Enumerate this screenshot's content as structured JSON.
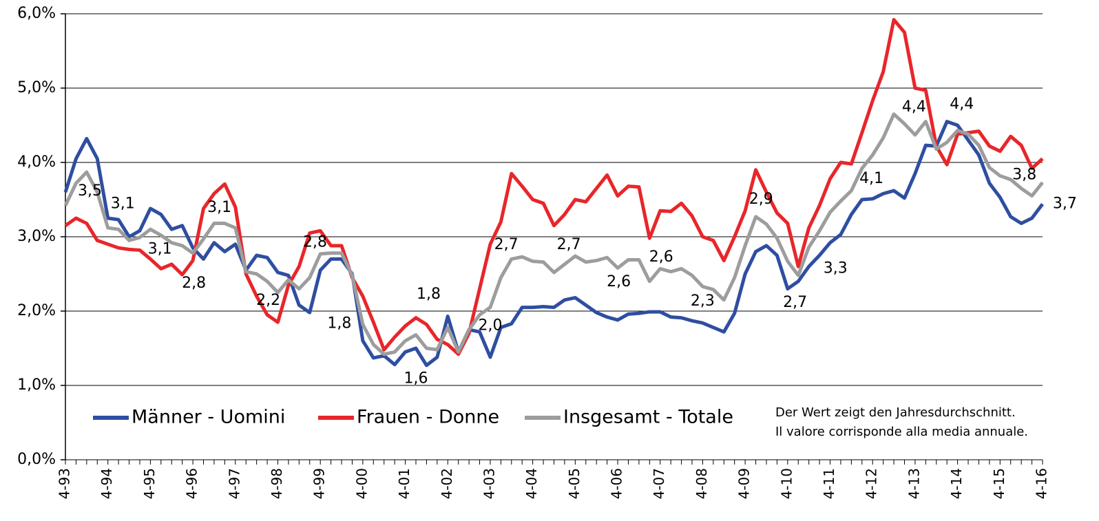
{
  "chart_data": {
    "type": "line",
    "categories": [
      "4-93",
      null,
      null,
      null,
      "4-94",
      null,
      null,
      null,
      "4-95",
      null,
      null,
      null,
      "4-96",
      null,
      null,
      null,
      "4-97",
      null,
      null,
      null,
      "4-98",
      null,
      null,
      null,
      "4-99",
      null,
      null,
      null,
      "4-00",
      null,
      null,
      null,
      "4-01",
      null,
      null,
      null,
      "4-02",
      null,
      null,
      null,
      "4-03",
      null,
      null,
      null,
      "4-04",
      null,
      null,
      null,
      "4-05",
      null,
      null,
      null,
      "4-06",
      null,
      null,
      null,
      "4-07",
      null,
      null,
      null,
      "4-08",
      null,
      null,
      null,
      "4-09",
      null,
      null,
      null,
      "4-10",
      null,
      null,
      null,
      "4-11",
      null,
      null,
      null,
      "4-12",
      null,
      null,
      null,
      "4-13",
      null,
      null,
      null,
      "4-14",
      null,
      null,
      null,
      "4-15",
      null,
      null,
      null,
      "4-16"
    ],
    "series": [
      {
        "name": "Männer - Uomini",
        "color": "#2f4ea1",
        "values": [
          3.6,
          4.05,
          4.32,
          4.05,
          3.25,
          3.23,
          3.0,
          3.08,
          3.38,
          3.3,
          3.1,
          3.15,
          2.85,
          2.7,
          2.92,
          2.8,
          2.9,
          2.55,
          2.75,
          2.72,
          2.52,
          2.48,
          2.08,
          1.98,
          2.55,
          2.7,
          2.7,
          2.5,
          1.6,
          1.37,
          1.4,
          1.28,
          1.45,
          1.5,
          1.27,
          1.38,
          1.93,
          1.45,
          1.75,
          1.72,
          1.38,
          1.78,
          1.83,
          2.05,
          2.05,
          2.06,
          2.05,
          2.15,
          2.18,
          2.08,
          1.98,
          1.92,
          1.88,
          1.96,
          1.97,
          1.99,
          1.99,
          1.92,
          1.91,
          1.87,
          1.84,
          1.78,
          1.72,
          1.97,
          2.5,
          2.8,
          2.88,
          2.75,
          2.3,
          2.4,
          2.6,
          2.75,
          2.92,
          3.03,
          3.3,
          3.5,
          3.51,
          3.58,
          3.62,
          3.52,
          3.85,
          4.23,
          4.22,
          4.55,
          4.5,
          4.3,
          4.1,
          3.72,
          3.53,
          3.27,
          3.18,
          3.25,
          3.44
        ]
      },
      {
        "name": "Frauen - Donne",
        "color": "#e8262a",
        "values": [
          3.15,
          3.25,
          3.18,
          2.95,
          2.9,
          2.85,
          2.83,
          2.82,
          2.7,
          2.57,
          2.63,
          2.49,
          2.68,
          3.38,
          3.58,
          3.71,
          3.4,
          2.5,
          2.2,
          1.95,
          1.85,
          2.35,
          2.6,
          3.05,
          3.08,
          2.88,
          2.88,
          2.45,
          2.2,
          1.85,
          1.48,
          1.65,
          1.8,
          1.91,
          1.82,
          1.62,
          1.55,
          1.42,
          1.7,
          2.3,
          2.9,
          3.2,
          3.85,
          3.68,
          3.5,
          3.45,
          3.15,
          3.3,
          3.5,
          3.47,
          3.65,
          3.83,
          3.55,
          3.68,
          3.67,
          2.98,
          3.35,
          3.34,
          3.45,
          3.28,
          3.0,
          2.95,
          2.68,
          3.0,
          3.35,
          3.9,
          3.6,
          3.32,
          3.18,
          2.6,
          3.12,
          3.42,
          3.78,
          4.0,
          3.98,
          4.4,
          4.83,
          5.22,
          5.92,
          5.75,
          5.0,
          4.97,
          4.22,
          3.97,
          4.38,
          4.4,
          4.42,
          4.22,
          4.15,
          4.35,
          4.23,
          3.92,
          4.05
        ]
      },
      {
        "name": "Insgesamt - Totale",
        "color": "#9d9d9d",
        "values": [
          3.42,
          3.72,
          3.87,
          3.6,
          3.12,
          3.1,
          2.95,
          2.99,
          3.1,
          3.02,
          2.92,
          2.88,
          2.78,
          2.97,
          3.18,
          3.18,
          3.12,
          2.53,
          2.5,
          2.4,
          2.25,
          2.42,
          2.3,
          2.45,
          2.77,
          2.78,
          2.78,
          2.48,
          1.82,
          1.55,
          1.42,
          1.45,
          1.6,
          1.68,
          1.5,
          1.48,
          1.78,
          1.45,
          1.75,
          1.95,
          2.05,
          2.45,
          2.7,
          2.73,
          2.67,
          2.66,
          2.52,
          2.63,
          2.74,
          2.66,
          2.68,
          2.72,
          2.58,
          2.69,
          2.69,
          2.4,
          2.57,
          2.53,
          2.57,
          2.48,
          2.33,
          2.29,
          2.15,
          2.45,
          2.88,
          3.27,
          3.17,
          2.98,
          2.67,
          2.48,
          2.86,
          3.08,
          3.33,
          3.48,
          3.62,
          3.92,
          4.1,
          4.33,
          4.65,
          4.52,
          4.37,
          4.55,
          4.18,
          4.27,
          4.43,
          4.38,
          4.23,
          3.93,
          3.82,
          3.77,
          3.65,
          3.55,
          3.73
        ]
      }
    ],
    "ylim": [
      0,
      6
    ],
    "yticks": [
      {
        "value": 0,
        "label": "0,0%"
      },
      {
        "value": 1,
        "label": "1,0%"
      },
      {
        "value": 2,
        "label": "2,0%"
      },
      {
        "value": 3,
        "label": "3,0%"
      },
      {
        "value": 4,
        "label": "4,0%"
      },
      {
        "value": 5,
        "label": "5,0%"
      },
      {
        "value": 6,
        "label": "6,0%"
      }
    ],
    "grid": true,
    "legend": "bottom-left",
    "note": [
      "Der Wert zeigt den Jahresdurchschnitt.",
      "Il valore corrisponde alla media annuale."
    ],
    "annotations": [
      {
        "text": "3,5",
        "x": 2.3,
        "y": 3.61
      },
      {
        "text": "3,1",
        "x": 5.4,
        "y": 3.44
      },
      {
        "text": "3,1",
        "x": 8.9,
        "y": 2.83
      },
      {
        "text": "2,8",
        "x": 12.1,
        "y": 2.37
      },
      {
        "text": "3,1",
        "x": 14.5,
        "y": 3.39
      },
      {
        "text": "2,2",
        "x": 19.1,
        "y": 2.14
      },
      {
        "text": "2,8",
        "x": 23.5,
        "y": 2.92
      },
      {
        "text": "1,8",
        "x": 25.8,
        "y": 1.83
      },
      {
        "text": "1,8",
        "x": 34.2,
        "y": 2.22
      },
      {
        "text": "1,6",
        "x": 33.0,
        "y": 1.09
      },
      {
        "text": "2,0",
        "x": 40.0,
        "y": 1.8
      },
      {
        "text": "2,7",
        "x": 41.5,
        "y": 2.89
      },
      {
        "text": "2,7",
        "x": 47.4,
        "y": 2.89
      },
      {
        "text": "2,6",
        "x": 52.1,
        "y": 2.39
      },
      {
        "text": "2,6",
        "x": 56.1,
        "y": 2.72
      },
      {
        "text": "2,3",
        "x": 60.0,
        "y": 2.13
      },
      {
        "text": "2,9",
        "x": 65.5,
        "y": 3.5
      },
      {
        "text": "2,7",
        "x": 68.7,
        "y": 2.11
      },
      {
        "text": "3,3",
        "x": 72.5,
        "y": 2.57
      },
      {
        "text": "4,1",
        "x": 75.9,
        "y": 3.78
      },
      {
        "text": "4,4",
        "x": 79.9,
        "y": 4.74
      },
      {
        "text": "4,4",
        "x": 84.4,
        "y": 4.78
      },
      {
        "text": "3,8",
        "x": 90.3,
        "y": 3.83
      },
      {
        "text": "3,7",
        "x": 94.1,
        "y": 3.44
      }
    ]
  }
}
